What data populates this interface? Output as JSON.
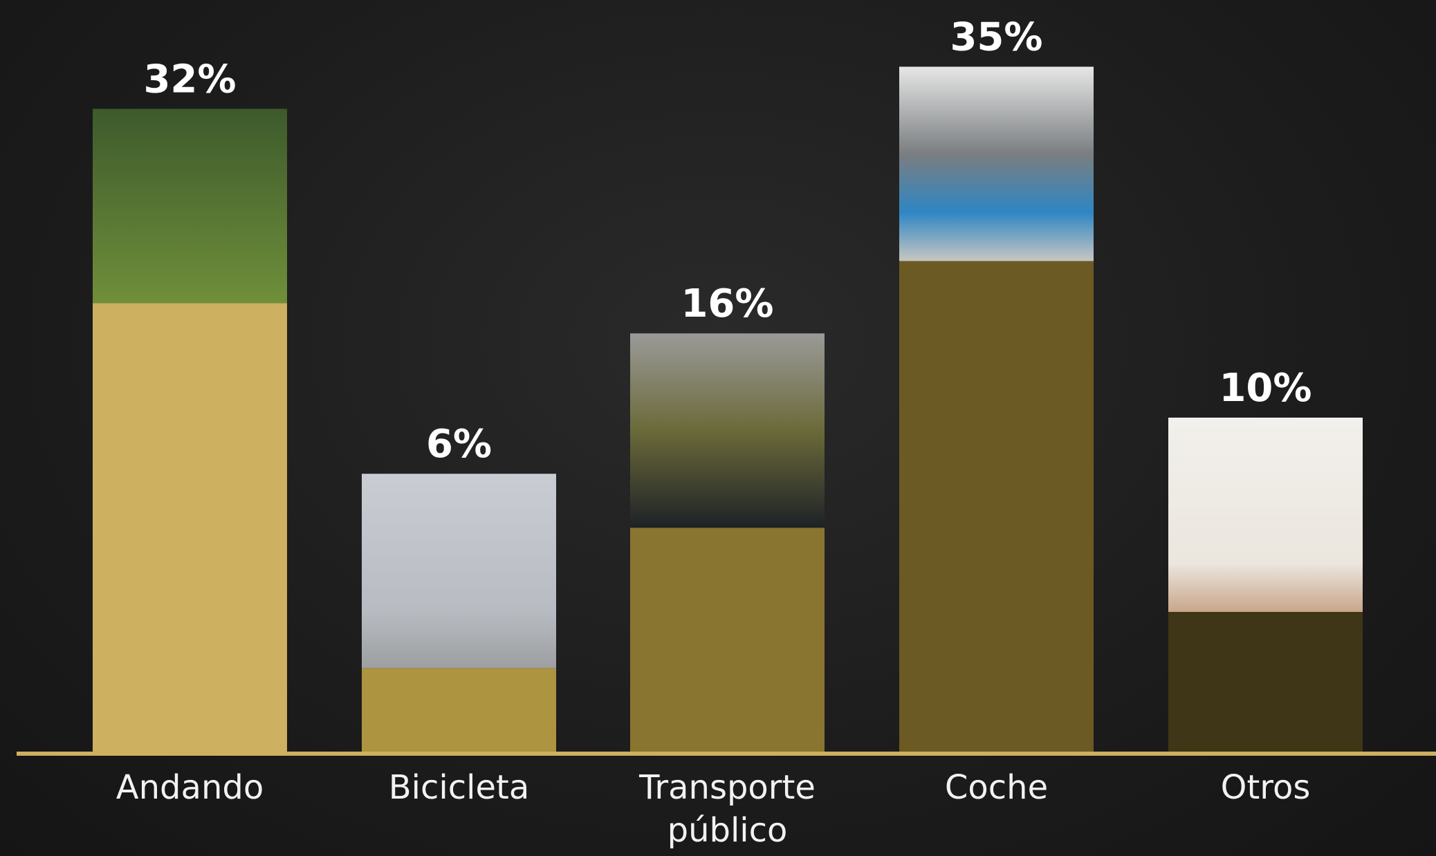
{
  "chart_data": {
    "type": "bar",
    "categories": [
      "Andando",
      "Bicicleta",
      "Transporte público",
      "Coche",
      "Otros"
    ],
    "values": [
      32,
      6,
      16,
      35,
      10
    ],
    "value_labels": [
      "32%",
      "6%",
      "16%",
      "35%",
      "10%"
    ],
    "colors": [
      "#cdb060",
      "#ad9440",
      "#8a7530",
      "#6b5a23",
      "#3f3618"
    ],
    "axis_color": "#cdb060"
  }
}
